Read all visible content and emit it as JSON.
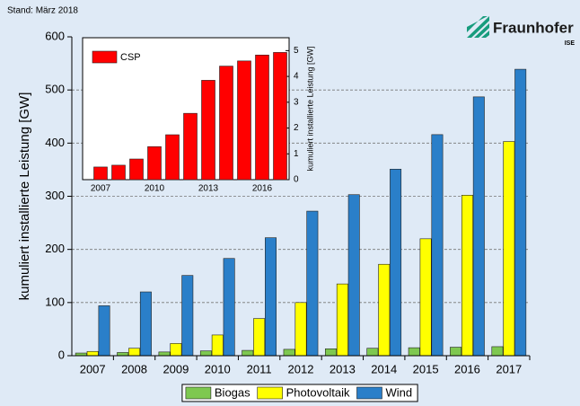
{
  "stand": "Stand: März 2018",
  "logo": {
    "name": "Fraunhofer",
    "institute": "ISE"
  },
  "chart_data": [
    {
      "type": "bar",
      "y_label": "kumuliert installierte Leistung [GW]",
      "categories": [
        "2007",
        "2008",
        "2009",
        "2010",
        "2011",
        "2012",
        "2013",
        "2014",
        "2015",
        "2016",
        "2017"
      ],
      "series": [
        {
          "name": "Biogas",
          "color": "#7ec850",
          "values": [
            5,
            6,
            7,
            9,
            10,
            12,
            13,
            14,
            15,
            16,
            17
          ]
        },
        {
          "name": "Photovoltaik",
          "color": "#ffff00",
          "values": [
            8,
            14,
            23,
            39,
            70,
            100,
            135,
            172,
            220,
            302,
            403
          ]
        },
        {
          "name": "Wind",
          "color": "#2a7fc9",
          "values": [
            94,
            120,
            151,
            183,
            222,
            272,
            303,
            351,
            416,
            487,
            539
          ]
        }
      ],
      "ylim": [
        0,
        600
      ],
      "yticks": [
        0,
        100,
        200,
        300,
        400,
        500,
        600
      ],
      "grid": true,
      "legend": "bottom"
    },
    {
      "type": "bar",
      "y_label": "kumuliert installierte Leistung [GW]",
      "x": [
        2007,
        2008,
        2009,
        2010,
        2011,
        2012,
        2013,
        2014,
        2015,
        2016,
        2017
      ],
      "xlim": [
        2006,
        2017.5
      ],
      "xticks": [
        2007,
        2010,
        2013,
        2016
      ],
      "series": [
        {
          "name": "CSP",
          "color": "#ff0000",
          "values": [
            0.49,
            0.56,
            0.8,
            1.28,
            1.74,
            2.57,
            3.85,
            4.4,
            4.6,
            4.83,
            4.93
          ]
        }
      ],
      "ylim": [
        0,
        5.5
      ],
      "yticks": [
        0,
        1,
        2,
        3,
        4,
        5
      ],
      "y_axis_side": "right",
      "grid": false,
      "legend": "upper left"
    }
  ]
}
